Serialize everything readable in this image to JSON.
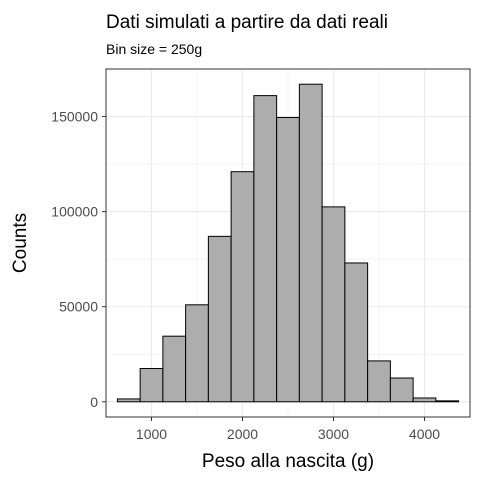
{
  "chart_data": {
    "type": "bar",
    "title": "Dati simulati a partire da dati reali",
    "subtitle": "Bin size = 250g",
    "xlabel": "Peso alla nascita (g)",
    "ylabel": "Counts",
    "xlim": [
      500,
      4500
    ],
    "ylim": [
      -8000,
      175000
    ],
    "xticks": [
      1000,
      2000,
      3000,
      4000
    ],
    "xtick_labels": [
      "1000",
      "2000",
      "3000",
      "4000"
    ],
    "yticks": [
      0,
      50000,
      100000,
      150000
    ],
    "ytick_labels": [
      "0",
      "50000",
      "100000",
      "150000"
    ],
    "bin_width": 250,
    "bin_centers": [
      750,
      1000,
      1250,
      1500,
      1750,
      2000,
      2250,
      2500,
      2750,
      3000,
      3250,
      3500,
      3750,
      4000,
      4250
    ],
    "values": [
      1500,
      17500,
      34500,
      51000,
      87000,
      121000,
      161000,
      149500,
      167000,
      102500,
      73000,
      21500,
      12500,
      2000,
      500
    ],
    "grid": true,
    "bar_color": "#adadad",
    "bar_edge_color": "#000000",
    "grid_color": "#ebebeb"
  }
}
